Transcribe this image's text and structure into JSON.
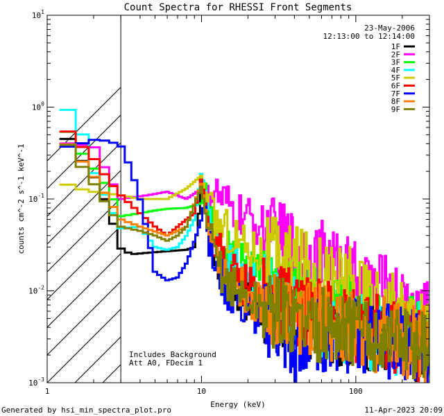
{
  "chart_data": {
    "type": "line",
    "title": "Count Spectra for RHESSI Front Segments",
    "xlabel": "Energy (keV)",
    "ylabel": "counts cm^-2 s^-1 keV^-1",
    "x_scale": "log",
    "y_scale": "log",
    "xlim": [
      1,
      300
    ],
    "ylim": [
      0.001,
      10
    ],
    "x_ticks": [
      1,
      10,
      100
    ],
    "x_tick_labels": [
      "1",
      "10",
      "100"
    ],
    "y_ticks": [
      0.001,
      0.01,
      0.1,
      1,
      10
    ],
    "hatched_region": [
      1,
      3
    ],
    "date_label": "23-May-2006",
    "time_range_label": "12:13:00 to 12:14:00",
    "annotations": [
      "Includes Background",
      "Att A0, FDecim 1"
    ],
    "footer_left": "Generated by hsi_min_spectra_plot.pro",
    "footer_right": "11-Apr-2023 20:09",
    "legend_position": "top-right",
    "series": [
      {
        "name": "1F",
        "color": "#000000",
        "points": [
          [
            1.2,
            0.66
          ],
          [
            1.5,
            0.34
          ],
          [
            2.0,
            0.18
          ],
          [
            2.5,
            0.08
          ],
          [
            3.0,
            0.029
          ],
          [
            3.5,
            0.025
          ],
          [
            4.5,
            0.026
          ],
          [
            6.0,
            0.027
          ],
          [
            8.0,
            0.028
          ],
          [
            9.0,
            0.03
          ],
          [
            9.5,
            0.05
          ],
          [
            10.0,
            0.2
          ],
          [
            10.5,
            0.12
          ],
          [
            11.0,
            0.05
          ],
          [
            12.0,
            0.03
          ],
          [
            13.0,
            0.02
          ],
          [
            15.0,
            0.012
          ],
          [
            20.0,
            0.008
          ],
          [
            30.0,
            0.006
          ],
          [
            50.0,
            0.0045
          ],
          [
            80.0,
            0.004
          ],
          [
            120.0,
            0.0035
          ],
          [
            200.0,
            0.003
          ],
          [
            300.0,
            0.0025
          ]
        ]
      },
      {
        "name": "2F",
        "color": "#ff00ff",
        "points": [
          [
            1.2,
            0.41
          ],
          [
            2.0,
            0.38
          ],
          [
            3.0,
            0.1
          ],
          [
            4.5,
            0.11
          ],
          [
            6.0,
            0.12
          ],
          [
            8.0,
            0.1
          ],
          [
            10.0,
            0.13
          ],
          [
            11.0,
            0.14
          ],
          [
            13.0,
            0.1
          ],
          [
            15.0,
            0.08
          ],
          [
            20.0,
            0.06
          ],
          [
            30.0,
            0.04
          ],
          [
            50.0,
            0.025
          ],
          [
            70.0,
            0.02
          ],
          [
            100.0,
            0.013
          ],
          [
            150.0,
            0.01
          ],
          [
            200.0,
            0.007
          ],
          [
            250.0,
            0.006
          ],
          [
            300.0,
            0.005
          ]
        ]
      },
      {
        "name": "3F",
        "color": "#00ff00",
        "points": [
          [
            1.2,
            0.81
          ],
          [
            1.5,
            0.4
          ],
          [
            2.0,
            0.22
          ],
          [
            2.5,
            0.13
          ],
          [
            3.0,
            0.065
          ],
          [
            4.0,
            0.07
          ],
          [
            5.0,
            0.075
          ],
          [
            6.0,
            0.078
          ],
          [
            8.0,
            0.08
          ],
          [
            10.0,
            0.09
          ],
          [
            10.5,
            0.18
          ],
          [
            11.0,
            0.07
          ],
          [
            12.0,
            0.04
          ],
          [
            15.0,
            0.025
          ],
          [
            20.0,
            0.018
          ],
          [
            30.0,
            0.012
          ],
          [
            50.0,
            0.008
          ],
          [
            80.0,
            0.006
          ],
          [
            120.0,
            0.0048
          ],
          [
            200.0,
            0.004
          ],
          [
            300.0,
            0.003
          ]
        ]
      },
      {
        "name": "4F",
        "color": "#00ffff",
        "points": [
          [
            1.2,
            1.5
          ],
          [
            1.4,
            0.85
          ],
          [
            1.7,
            0.5
          ],
          [
            2.0,
            0.2
          ],
          [
            2.5,
            0.09
          ],
          [
            3.0,
            0.048
          ],
          [
            4.0,
            0.05
          ],
          [
            5.0,
            0.03
          ],
          [
            6.0,
            0.028
          ],
          [
            7.0,
            0.03
          ],
          [
            8.0,
            0.04
          ],
          [
            9.0,
            0.06
          ],
          [
            10.0,
            0.2
          ],
          [
            11.0,
            0.09
          ],
          [
            12.0,
            0.04
          ],
          [
            14.0,
            0.022
          ],
          [
            20.0,
            0.013
          ],
          [
            30.0,
            0.008
          ],
          [
            50.0,
            0.005
          ],
          [
            80.0,
            0.004
          ],
          [
            150.0,
            0.0033
          ],
          [
            300.0,
            0.0028
          ]
        ]
      },
      {
        "name": "5F",
        "color": "#cccc00",
        "points": [
          [
            1.2,
            0.155
          ],
          [
            1.6,
            0.13
          ],
          [
            2.0,
            0.12
          ],
          [
            3.0,
            0.11
          ],
          [
            4.0,
            0.1
          ],
          [
            6.0,
            0.1
          ],
          [
            8.0,
            0.13
          ],
          [
            10.0,
            0.18
          ],
          [
            11.0,
            0.09
          ],
          [
            12.0,
            0.06
          ],
          [
            15.0,
            0.045
          ],
          [
            20.0,
            0.03
          ],
          [
            30.0,
            0.024
          ],
          [
            50.0,
            0.018
          ],
          [
            80.0,
            0.013
          ],
          [
            120.0,
            0.009
          ],
          [
            180.0,
            0.006
          ],
          [
            250.0,
            0.005
          ],
          [
            300.0,
            0.0038
          ]
        ]
      },
      {
        "name": "6F",
        "color": "#ff0000",
        "points": [
          [
            1.2,
            0.7
          ],
          [
            1.5,
            0.45
          ],
          [
            2.0,
            0.28
          ],
          [
            2.5,
            0.16
          ],
          [
            3.0,
            0.11
          ],
          [
            4.0,
            0.07
          ],
          [
            5.0,
            0.05
          ],
          [
            6.0,
            0.04
          ],
          [
            7.0,
            0.05
          ],
          [
            8.0,
            0.06
          ],
          [
            9.0,
            0.07
          ],
          [
            10.0,
            0.17
          ],
          [
            11.0,
            0.06
          ],
          [
            12.0,
            0.035
          ],
          [
            15.0,
            0.018
          ],
          [
            20.0,
            0.011
          ],
          [
            30.0,
            0.008
          ],
          [
            50.0,
            0.0055
          ],
          [
            80.0,
            0.0045
          ],
          [
            120.0,
            0.0038
          ],
          [
            200.0,
            0.003
          ],
          [
            300.0,
            0.0025
          ]
        ]
      },
      {
        "name": "7F",
        "color": "#0000ff",
        "points": [
          [
            1.2,
            0.36
          ],
          [
            1.5,
            0.38
          ],
          [
            2.0,
            0.44
          ],
          [
            2.5,
            0.43
          ],
          [
            3.0,
            0.38
          ],
          [
            3.5,
            0.21
          ],
          [
            4.0,
            0.1
          ],
          [
            4.5,
            0.04
          ],
          [
            5.0,
            0.016
          ],
          [
            6.0,
            0.013
          ],
          [
            7.0,
            0.014
          ],
          [
            8.0,
            0.02
          ],
          [
            9.0,
            0.035
          ],
          [
            10.0,
            0.06
          ],
          [
            10.5,
            0.1
          ],
          [
            11.0,
            0.04
          ],
          [
            12.0,
            0.02
          ],
          [
            15.0,
            0.01
          ],
          [
            20.0,
            0.006
          ],
          [
            30.0,
            0.0045
          ],
          [
            45.0,
            0.0015
          ],
          [
            50.0,
            0.0035
          ],
          [
            80.0,
            0.0033
          ],
          [
            120.0,
            0.003
          ],
          [
            200.0,
            0.0028
          ],
          [
            300.0,
            0.0022
          ]
        ]
      },
      {
        "name": "8F",
        "color": "#ff8000",
        "points": [
          [
            1.2,
            0.5
          ],
          [
            1.5,
            0.33
          ],
          [
            2.0,
            0.18
          ],
          [
            2.5,
            0.1
          ],
          [
            3.0,
            0.06
          ],
          [
            4.0,
            0.05
          ],
          [
            6.0,
            0.04
          ],
          [
            8.0,
            0.05
          ],
          [
            10.0,
            0.15
          ],
          [
            11.0,
            0.05
          ],
          [
            12.0,
            0.03
          ],
          [
            15.0,
            0.014
          ],
          [
            20.0,
            0.009
          ],
          [
            30.0,
            0.0065
          ],
          [
            50.0,
            0.0048
          ],
          [
            80.0,
            0.004
          ],
          [
            150.0,
            0.0033
          ],
          [
            300.0,
            0.0026
          ]
        ]
      },
      {
        "name": "9F",
        "color": "#808000",
        "points": [
          [
            1.2,
            0.55
          ],
          [
            1.5,
            0.3
          ],
          [
            2.0,
            0.15
          ],
          [
            2.5,
            0.08
          ],
          [
            3.0,
            0.05
          ],
          [
            4.0,
            0.045
          ],
          [
            5.0,
            0.04
          ],
          [
            6.0,
            0.035
          ],
          [
            7.0,
            0.04
          ],
          [
            8.0,
            0.05
          ],
          [
            10.0,
            0.14
          ],
          [
            11.0,
            0.045
          ],
          [
            12.0,
            0.025
          ],
          [
            15.0,
            0.012
          ],
          [
            20.0,
            0.008
          ],
          [
            30.0,
            0.006
          ],
          [
            50.0,
            0.0045
          ],
          [
            80.0,
            0.0038
          ],
          [
            150.0,
            0.0032
          ],
          [
            300.0,
            0.0025
          ]
        ]
      }
    ]
  }
}
